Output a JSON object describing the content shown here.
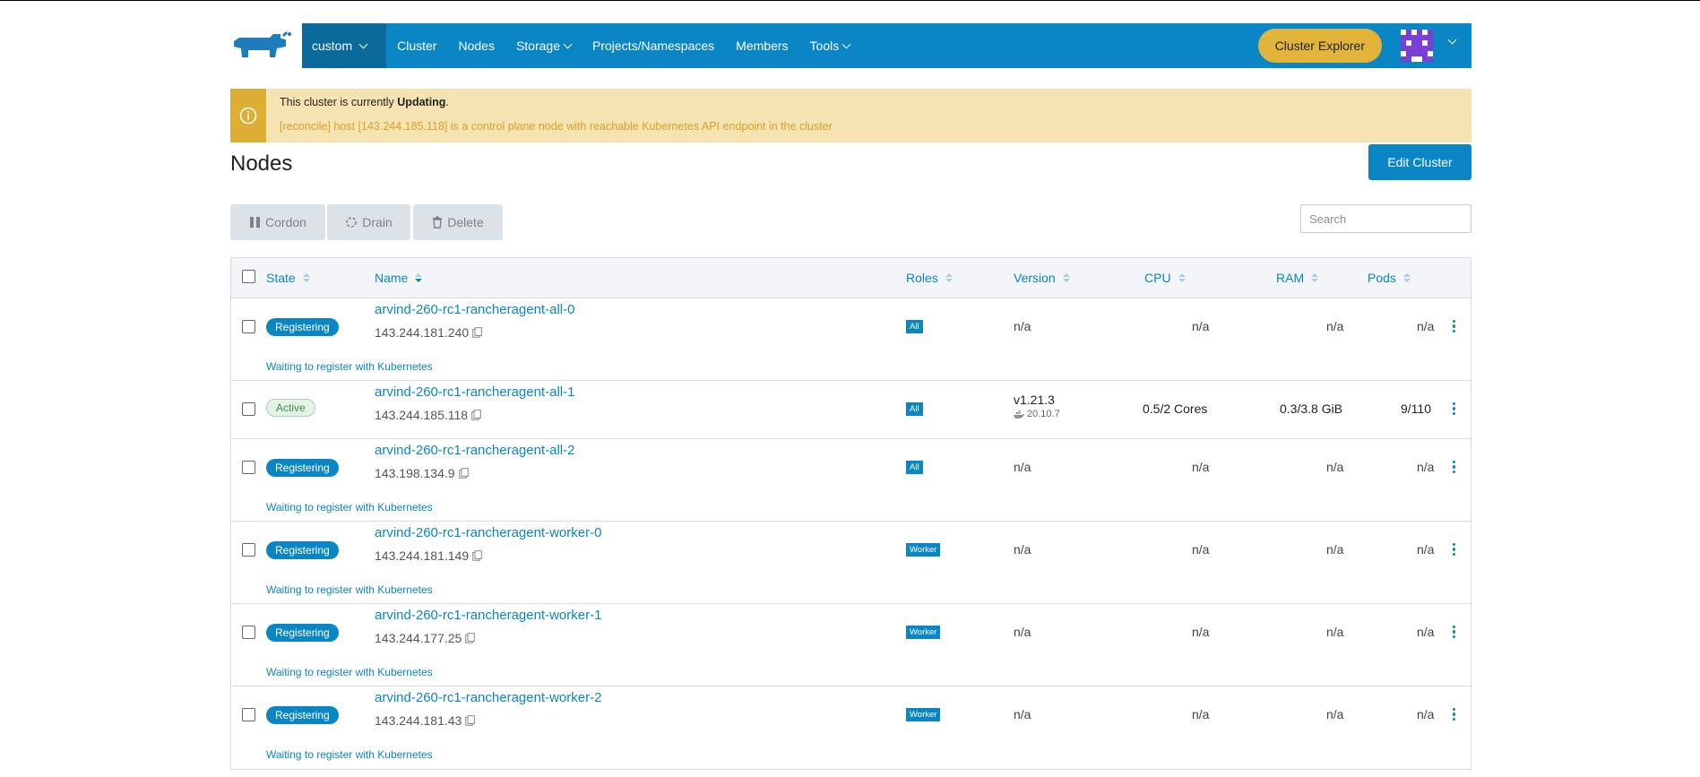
{
  "nav": {
    "cluster_select": "custom",
    "items": [
      "Cluster",
      "Nodes",
      "Storage",
      "Projects/Namespaces",
      "Members",
      "Tools"
    ],
    "explorer_button": "Cluster Explorer"
  },
  "alert": {
    "line1_prefix": "This cluster is currently ",
    "line1_state": "Updating",
    "line1_suffix": ".",
    "line2": "[reconcile] host [143.244.185.118] is a control plane node with reachable Kubernetes API endpoint in the cluster"
  },
  "page_title": "Nodes",
  "edit_button": "Edit Cluster",
  "actions": {
    "cordon": "Cordon",
    "drain": "Drain",
    "delete": "Delete"
  },
  "search": {
    "placeholder": "Search",
    "value": ""
  },
  "columns": [
    "State",
    "Name",
    "Roles",
    "Version",
    "CPU",
    "RAM",
    "Pods"
  ],
  "nodes": [
    {
      "state": "Registering",
      "name": "arvind-260-rc1-rancheragent-all-0",
      "ip": "143.244.181.240",
      "role": "All",
      "version": "n/a",
      "cpu": "n/a",
      "ram": "n/a",
      "pods": "n/a",
      "message": "Waiting to register with Kubernetes"
    },
    {
      "state": "Active",
      "name": "arvind-260-rc1-rancheragent-all-1",
      "ip": "143.244.185.118",
      "role": "All",
      "version": "v1.21.3",
      "docker_version": "20.10.7",
      "cpu": "0.5/2 Cores",
      "ram": "0.3/3.8 GiB",
      "pods": "9/110"
    },
    {
      "state": "Registering",
      "name": "arvind-260-rc1-rancheragent-all-2",
      "ip": "143.198.134.9",
      "role": "All",
      "version": "n/a",
      "cpu": "n/a",
      "ram": "n/a",
      "pods": "n/a",
      "message": "Waiting to register with Kubernetes"
    },
    {
      "state": "Registering",
      "name": "arvind-260-rc1-rancheragent-worker-0",
      "ip": "143.244.181.149",
      "role": "Worker",
      "version": "n/a",
      "cpu": "n/a",
      "ram": "n/a",
      "pods": "n/a",
      "message": "Waiting to register with Kubernetes"
    },
    {
      "state": "Registering",
      "name": "arvind-260-rc1-rancheragent-worker-1",
      "ip": "143.244.177.25",
      "role": "Worker",
      "version": "n/a",
      "cpu": "n/a",
      "ram": "n/a",
      "pods": "n/a",
      "message": "Waiting to register with Kubernetes"
    },
    {
      "state": "Registering",
      "name": "arvind-260-rc1-rancheragent-worker-2",
      "ip": "143.244.181.43",
      "role": "Worker",
      "version": "n/a",
      "cpu": "n/a",
      "ram": "n/a",
      "pods": "n/a",
      "message": "Waiting to register with Kubernetes"
    }
  ],
  "icons": {
    "logo": "rancher-cow-logo",
    "alert": "info-icon",
    "copy": "copy-icon",
    "docker": "docker-icon",
    "menu": "kebab-menu-icon"
  },
  "colors": {
    "primary": "#0b86c4",
    "warning": "#dcae34",
    "warning_bg": "#f5e3b2",
    "success": "#3e8e4c",
    "explorer": "#e3b43a"
  }
}
